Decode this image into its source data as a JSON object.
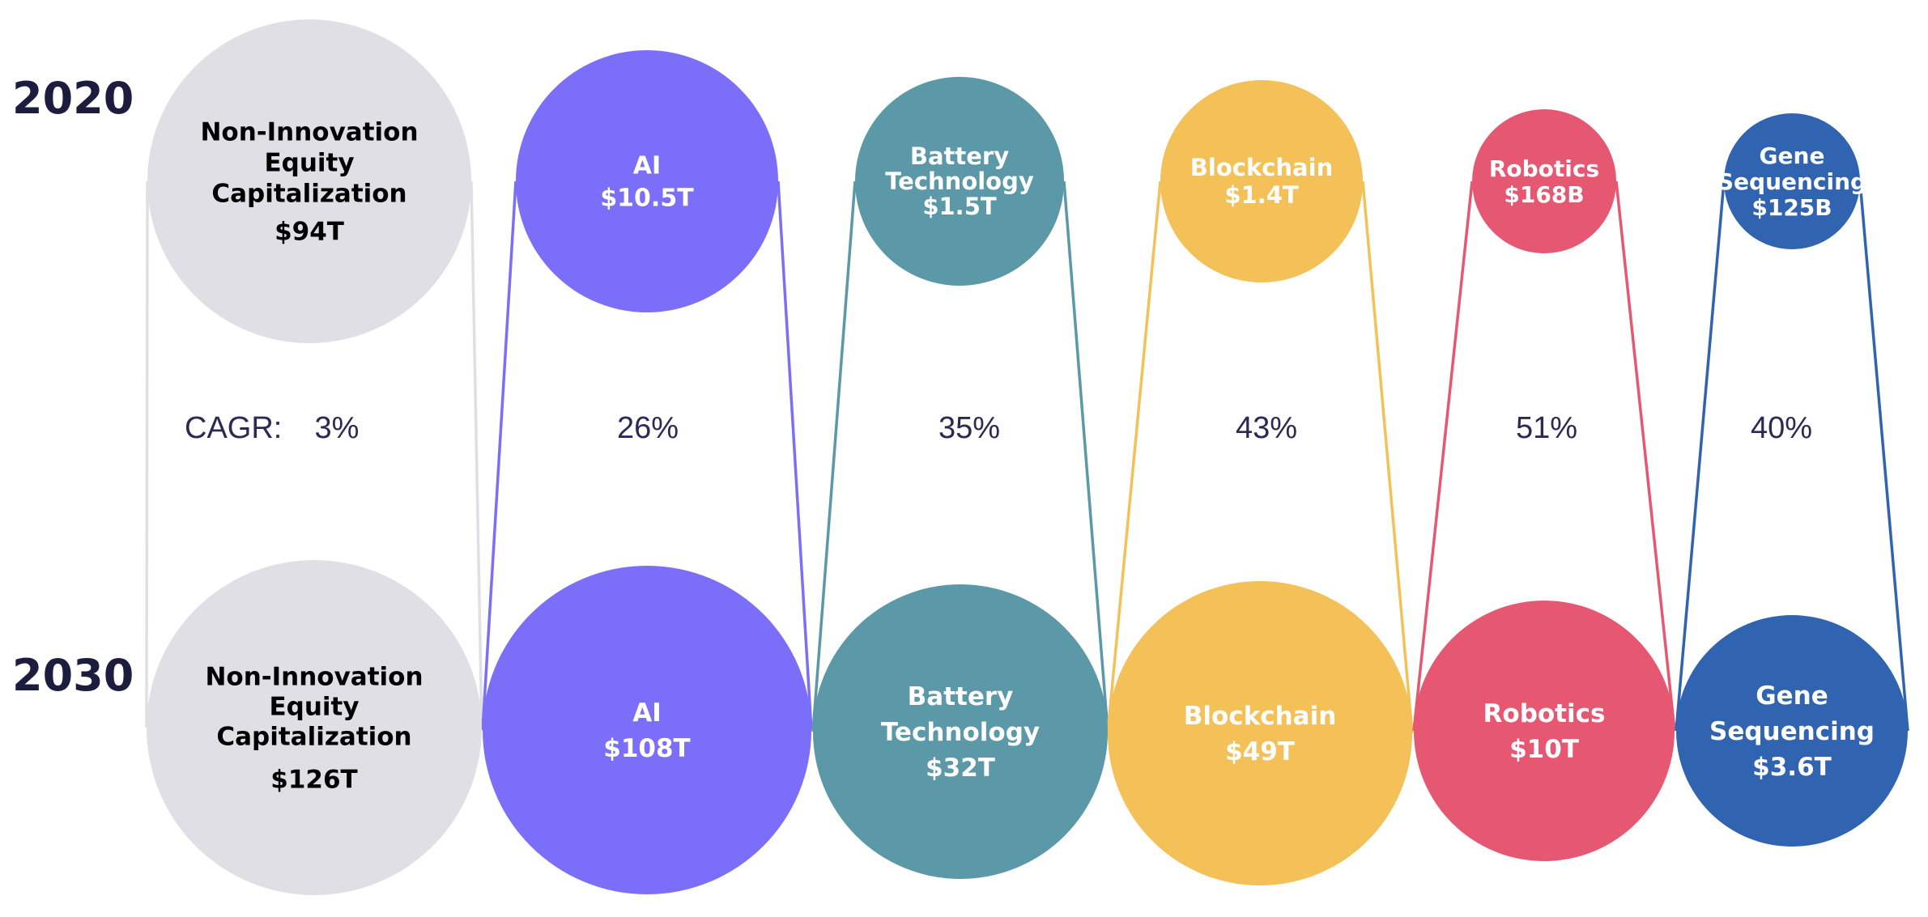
{
  "chart_data": {
    "type": "bubble",
    "years": [
      "2020",
      "2030"
    ],
    "cagr_label": "CAGR:",
    "categories": [
      {
        "name": "Non-Innovation Equity Capitalization",
        "lines": [
          "Non-Innovation",
          "Equity",
          "Capitalization"
        ],
        "value_2020": "$94T",
        "value_2030": "$126T",
        "cagr": "3%",
        "color": "#dfdfe5",
        "text_color": "#000000"
      },
      {
        "name": "AI",
        "lines": [
          "AI"
        ],
        "value_2020": "$10.5T",
        "value_2030": "$108T",
        "cagr": "26%",
        "color": "#7b6ef8",
        "text_color": "#ffffff"
      },
      {
        "name": "Battery Technology",
        "lines": [
          "Battery",
          "Technology"
        ],
        "value_2020": "$1.5T",
        "value_2030": "$32T",
        "cagr": "35%",
        "color": "#5b98a8",
        "text_color": "#ffffff"
      },
      {
        "name": "Blockchain",
        "lines": [
          "Blockchain"
        ],
        "value_2020": "$1.4T",
        "value_2030": "$49T",
        "cagr": "43%",
        "color": "#f3c158",
        "text_color": "#ffffff"
      },
      {
        "name": "Robotics",
        "lines": [
          "Robotics"
        ],
        "value_2020": "$168B",
        "value_2030": "$10T",
        "cagr": "51%",
        "color": "#e65872",
        "text_color": "#ffffff"
      },
      {
        "name": "Gene Sequencing",
        "lines": [
          "Gene",
          "Sequencing"
        ],
        "value_2020": "$125B",
        "value_2030": "$3.6T",
        "cagr": "40%",
        "color": "#3164b0",
        "text_color": "#ffffff"
      }
    ]
  }
}
